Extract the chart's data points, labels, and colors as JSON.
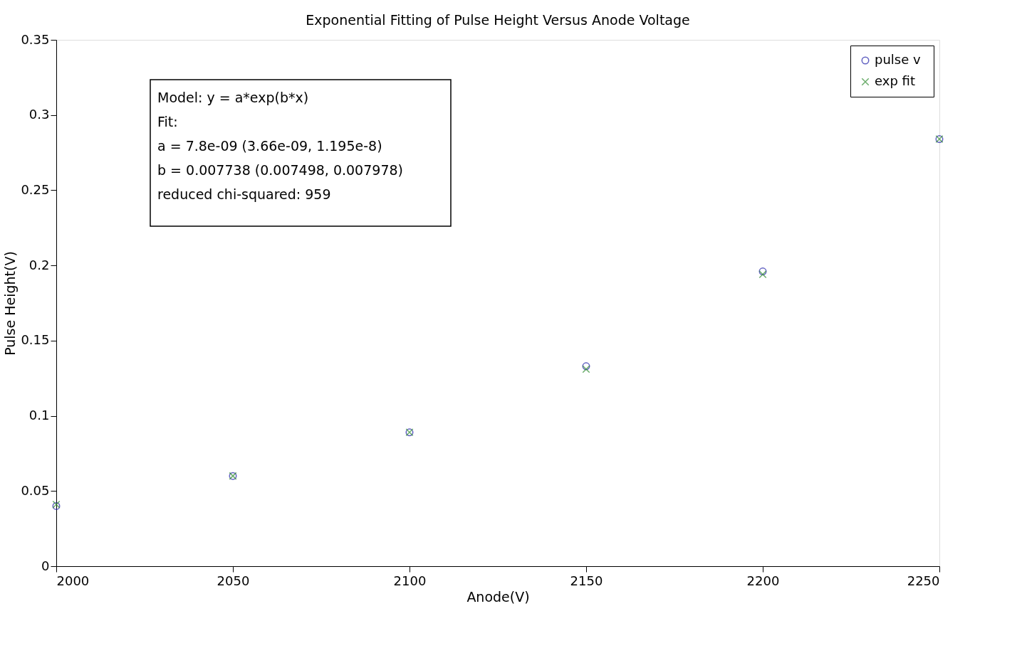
{
  "chart_data": {
    "type": "scatter",
    "title": "Exponential Fitting of Pulse Height Versus Anode Voltage",
    "xlabel": "Anode(V)",
    "ylabel": "Pulse Height(V)",
    "x": [
      2000,
      2050,
      2100,
      2150,
      2200,
      2250
    ],
    "series": [
      {
        "name": "pulse  v",
        "color": "#1f1fa8",
        "marker": "circle",
        "values": [
          0.04,
          0.06,
          0.089,
          0.133,
          0.196,
          0.284
        ]
      },
      {
        "name": "exp fit",
        "color": "#2e8b2e",
        "marker": "cross",
        "values": [
          0.041,
          0.06,
          0.089,
          0.131,
          0.194,
          0.284
        ]
      }
    ],
    "xlim": [
      2000,
      2250
    ],
    "xticks": [
      2000,
      2050,
      2100,
      2150,
      2200,
      2250
    ],
    "ylim": [
      0,
      0.35
    ],
    "yticks": [
      0,
      0.05,
      0.1,
      0.15,
      0.2,
      0.25,
      0.3,
      0.35
    ],
    "grid": false,
    "legend": "top right",
    "annotations": [
      "Model: y = a*exp(b*x)",
      "Fit:",
      "a = 7.8e-09  (3.66e-09, 1.195e-8)",
      "b = 0.007738 (0.007498, 0.007978)",
      "reduced chi-squared: 959"
    ]
  }
}
